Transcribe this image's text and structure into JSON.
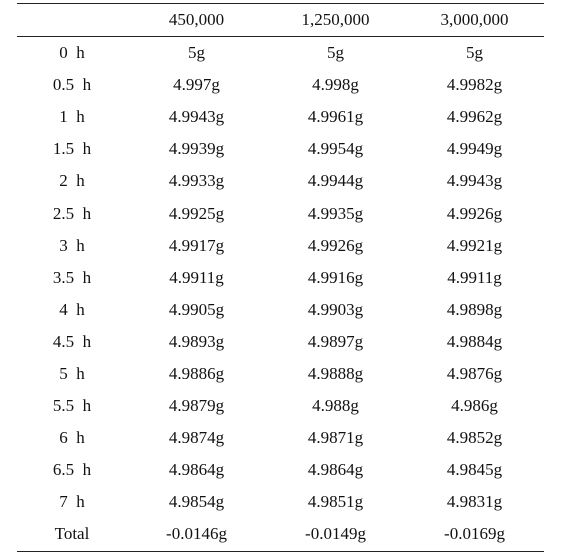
{
  "table": {
    "header": [
      "450,000",
      "1,250,000",
      "3,000,000"
    ],
    "rows": [
      [
        "0  h",
        "5g",
        "5g",
        "5g"
      ],
      [
        "0.5  h",
        "4.997g",
        "4.998g",
        "4.9982g"
      ],
      [
        "1  h",
        "4.9943g",
        "4.9961g",
        "4.9962g"
      ],
      [
        "1.5  h",
        "4.9939g",
        "4.9954g",
        "4.9949g"
      ],
      [
        "2  h",
        "4.9933g",
        "4.9944g",
        "4.9943g"
      ],
      [
        "2.5  h",
        "4.9925g",
        "4.9935g",
        "4.9926g"
      ],
      [
        "3  h",
        "4.9917g",
        "4.9926g",
        "4.9921g"
      ],
      [
        "3.5  h",
        "4.9911g",
        "4.9916g",
        "4.9911g"
      ],
      [
        "4  h",
        "4.9905g",
        "4.9903g",
        "4.9898g"
      ],
      [
        "4.5  h",
        "4.9893g",
        "4.9897g",
        "4.9884g"
      ],
      [
        "5  h",
        "4.9886g",
        "4.9888g",
        "4.9876g"
      ],
      [
        "5.5  h",
        "4.9879g",
        "4.988g",
        "4.986g"
      ],
      [
        "6  h",
        "4.9874g",
        "4.9871g",
        "4.9852g"
      ],
      [
        "6.5  h",
        "4.9864g",
        "4.9864g",
        "4.9845g"
      ],
      [
        "7  h",
        "4.9854g",
        "4.9851g",
        "4.9831g"
      ],
      [
        "Total",
        "-0.0146g",
        "-0.0149g",
        "-0.0169g"
      ]
    ]
  }
}
